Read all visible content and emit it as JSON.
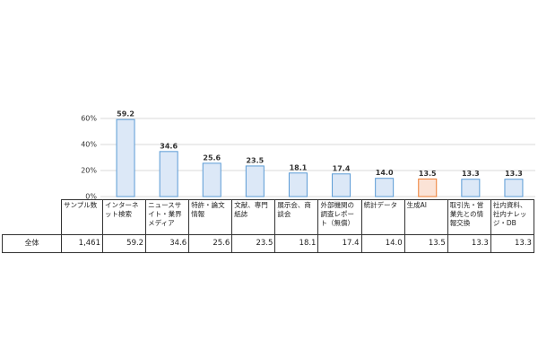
{
  "chart_data": {
    "type": "bar",
    "categories": [
      "インターネット検索",
      "ニュースサイト・業界メディア",
      "特許・論文情報",
      "文献、専門紙誌",
      "展示会、商談会",
      "外部機関の調査レポート（無償）",
      "統計データ",
      "生成AI",
      "取引先・営業先との情報交換",
      "社内資料、社内ナレッジ・DB"
    ],
    "values": [
      59.2,
      34.6,
      25.6,
      23.5,
      18.1,
      17.4,
      14.0,
      13.5,
      13.3,
      13.3
    ],
    "value_labels": [
      "59.2",
      "34.6",
      "25.6",
      "23.5",
      "18.1",
      "17.4",
      "14.0",
      "13.5",
      "13.3",
      "13.3"
    ],
    "colors": [
      "#dce8f7",
      "#dce8f7",
      "#dce8f7",
      "#dce8f7",
      "#dce8f7",
      "#dce8f7",
      "#dce8f7",
      "#fbe3d6",
      "#dce8f7",
      "#dce8f7"
    ],
    "edge_colors": [
      "#5b9bd5",
      "#5b9bd5",
      "#5b9bd5",
      "#5b9bd5",
      "#5b9bd5",
      "#5b9bd5",
      "#5b9bd5",
      "#ed7d31",
      "#5b9bd5",
      "#5b9bd5"
    ],
    "ylim": [
      0,
      60
    ],
    "yticks": [
      {
        "value": 0,
        "label": "0%"
      },
      {
        "value": 20,
        "label": "20%"
      },
      {
        "value": 40,
        "label": "40%"
      },
      {
        "value": 60,
        "label": "60%"
      }
    ],
    "grid": true
  },
  "table": {
    "sample_header": "サンプル数",
    "row_label": "全体",
    "sample_size": "1,461"
  }
}
